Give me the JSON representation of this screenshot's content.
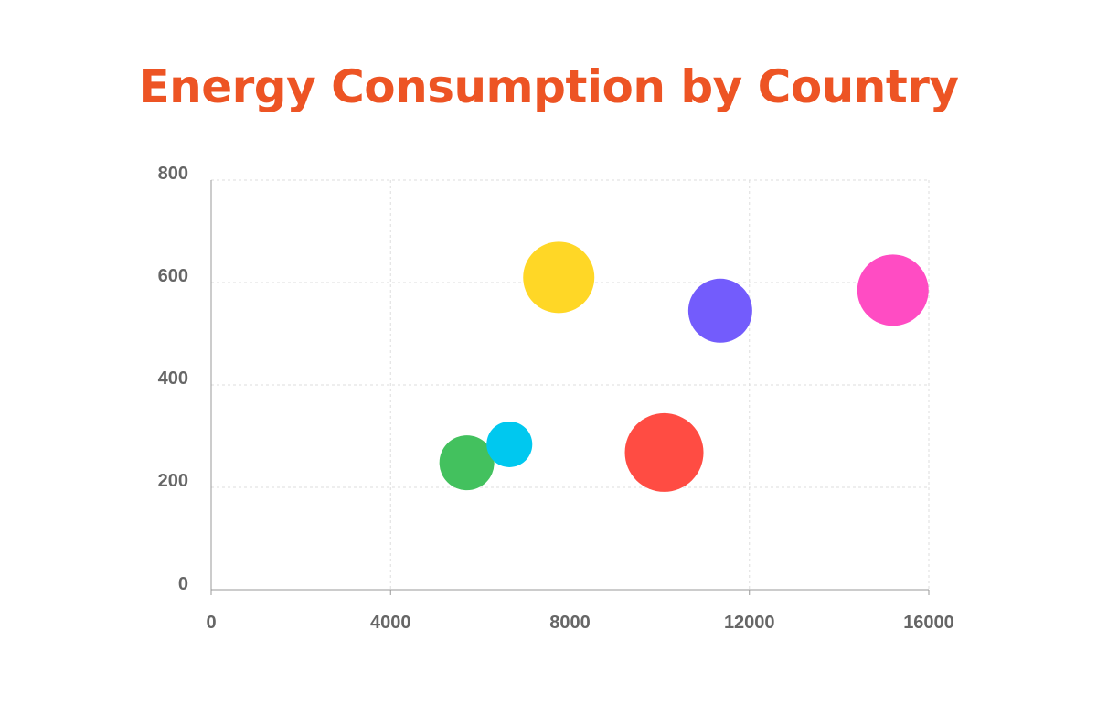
{
  "colors": {
    "title": "#ED5424",
    "grid": "#DDDDDD",
    "axis": "#999999",
    "tick_text": "#666666"
  },
  "chart_data": {
    "type": "scatter",
    "variant": "bubble",
    "title": "Energy Consumption by Country",
    "xlabel": "",
    "ylabel": "",
    "xlim": [
      0,
      16000
    ],
    "ylim": [
      0,
      800
    ],
    "x_ticks": [
      0,
      4000,
      8000,
      12000,
      16000
    ],
    "y_ticks": [
      0,
      200,
      400,
      600,
      800
    ],
    "x_tick_labels": [
      "0",
      "4000",
      "8000",
      "12000",
      "16000"
    ],
    "y_tick_labels": [
      "0",
      "200",
      "400",
      "600",
      "800"
    ],
    "grid": true,
    "legend": "none",
    "series": [
      {
        "x": 5700,
        "y": 248,
        "size": 30,
        "color": "#43C15E"
      },
      {
        "x": 6650,
        "y": 284,
        "size": 25,
        "color": "#00C8EF"
      },
      {
        "x": 7750,
        "y": 610,
        "size": 39,
        "color": "#FFD726"
      },
      {
        "x": 10100,
        "y": 268,
        "size": 43,
        "color": "#FF4C43"
      },
      {
        "x": 11350,
        "y": 545,
        "size": 35,
        "color": "#735CFC"
      },
      {
        "x": 15200,
        "y": 585,
        "size": 39,
        "color": "#FF4CC3"
      }
    ]
  }
}
